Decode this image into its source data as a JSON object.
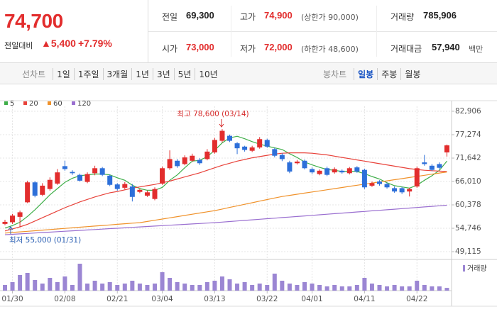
{
  "header": {
    "price": "74,700",
    "change_label": "전일대비",
    "change": "▲5,400",
    "rate": "+7.79%",
    "rows": [
      [
        {
          "label": "전일",
          "value": "69,300"
        },
        {
          "label": "고가",
          "value": "74,900",
          "note": "(상한가 90,000)"
        },
        {
          "label": "거래량",
          "value": "785,906"
        }
      ],
      [
        {
          "label": "시가",
          "value": "73,000"
        },
        {
          "label": "저가",
          "value": "72,000",
          "note": "(하한가 48,600)"
        },
        {
          "label": "거래대금",
          "value": "57,940",
          "note": "백만"
        }
      ]
    ]
  },
  "toolbar": {
    "line_label": "선차트",
    "line_items": [
      "1일",
      "1주일",
      "3개월",
      "1년",
      "3년",
      "5년",
      "10년"
    ],
    "candle_label": "봉차트",
    "candle_items": [
      "일봉",
      "주봉",
      "월봉"
    ]
  },
  "chart_data": {
    "type": "candlestick",
    "categories": [
      null,
      "01/30",
      null,
      null,
      null,
      null,
      null,
      null,
      "02/08",
      null,
      null,
      null,
      null,
      null,
      null,
      "02/21",
      null,
      null,
      null,
      null,
      null,
      "03/04",
      null,
      null,
      null,
      null,
      null,
      null,
      "03/13",
      null,
      null,
      null,
      null,
      null,
      null,
      "03/22",
      null,
      null,
      null,
      null,
      null,
      "04/01",
      null,
      null,
      null,
      null,
      null,
      null,
      "04/11",
      null,
      null,
      null,
      null,
      null,
      null,
      "04/22",
      null,
      null,
      null,
      null
    ],
    "open": [
      55800,
      56200,
      57500,
      61000,
      65800,
      62800,
      64200,
      65500,
      69700,
      68300,
      67600,
      65900,
      68000,
      69200,
      67400,
      65300,
      64500,
      64800,
      63500,
      62600,
      61800,
      65500,
      69200,
      71000,
      70200,
      71000,
      71200,
      71400,
      73000,
      75800,
      77000,
      75200,
      74400,
      73400,
      74200,
      76000,
      73800,
      72400,
      70600,
      70400,
      71000,
      69000,
      67800,
      69200,
      68200,
      68600,
      68000,
      69400,
      68800,
      65000,
      66000,
      65400,
      64400,
      64400,
      63600,
      64800,
      70600,
      69800,
      70200,
      73000
    ],
    "high": [
      56800,
      58200,
      59000,
      66200,
      66100,
      65600,
      67000,
      69000,
      71000,
      68700,
      67900,
      68200,
      69800,
      69500,
      67700,
      65600,
      65900,
      65400,
      64300,
      63800,
      64600,
      69600,
      73500,
      71400,
      72300,
      72700,
      71600,
      73800,
      76500,
      78600,
      77300,
      75500,
      74600,
      74600,
      76700,
      76300,
      74100,
      72800,
      71000,
      71200,
      71300,
      69400,
      68900,
      69600,
      69400,
      68900,
      69500,
      69700,
      69100,
      66000,
      66300,
      65700,
      64800,
      64700,
      64500,
      69600,
      72400,
      70200,
      70600,
      74900
    ],
    "low": [
      55500,
      55800,
      55000,
      60800,
      62200,
      62500,
      63800,
      65200,
      68600,
      67600,
      66000,
      65600,
      67500,
      67300,
      64900,
      63800,
      64100,
      61200,
      63200,
      62300,
      61500,
      65200,
      68800,
      69300,
      69900,
      70700,
      70000,
      71100,
      72700,
      75400,
      75500,
      72600,
      73200,
      73100,
      73900,
      74100,
      71800,
      70900,
      68000,
      70100,
      68900,
      67800,
      67500,
      67300,
      67900,
      67900,
      67700,
      68100,
      64200,
      64700,
      65000,
      64300,
      63300,
      63000,
      62400,
      64500,
      69800,
      68500,
      68900,
      72000
    ],
    "close": [
      56300,
      57800,
      58600,
      65800,
      62600,
      65000,
      66400,
      68200,
      69000,
      68000,
      66200,
      67800,
      69200,
      67600,
      65200,
      64200,
      65400,
      62300,
      64000,
      63400,
      64200,
      69200,
      71400,
      69700,
      71800,
      72200,
      70400,
      73200,
      76000,
      78200,
      75800,
      74000,
      73600,
      74200,
      76200,
      74400,
      72200,
      71400,
      68400,
      70800,
      69200,
      68200,
      68600,
      67600,
      69000,
      68200,
      69200,
      68400,
      64600,
      65600,
      65400,
      64600,
      63600,
      63400,
      64200,
      69200,
      70200,
      68800,
      69300,
      74700
    ],
    "up_color": "#e22d2d",
    "down_color": "#2d6fd9",
    "series": [
      {
        "name": "5",
        "color": "#3fae49",
        "values": [
          54800,
          55400,
          56200,
          57600,
          59200,
          61000,
          62800,
          64300,
          65800,
          66800,
          67400,
          67600,
          67800,
          67800,
          67600,
          66900,
          66300,
          65100,
          64300,
          63900,
          63900,
          64600,
          66300,
          67600,
          69300,
          70900,
          71100,
          72000,
          73500,
          75300,
          76500,
          76900,
          76300,
          75600,
          75000,
          74500,
          74100,
          73700,
          72700,
          71800,
          70700,
          70000,
          69400,
          68900,
          68700,
          68400,
          68500,
          68400,
          67900,
          67200,
          66600,
          65700,
          65000,
          64700,
          64400,
          65100,
          66300,
          67400,
          68700,
          70900
        ]
      },
      {
        "name": "20",
        "color": "#e8423a",
        "values": [
          54100,
          54600,
          55100,
          55700,
          56500,
          57300,
          58100,
          58900,
          59700,
          60400,
          61100,
          61700,
          62300,
          62800,
          63300,
          63600,
          64000,
          64400,
          64700,
          65000,
          65300,
          65700,
          66100,
          66600,
          67100,
          67600,
          68100,
          68700,
          69300,
          69900,
          70400,
          70900,
          71300,
          71700,
          72000,
          72300,
          72600,
          72800,
          72900,
          72900,
          72900,
          72800,
          72600,
          72400,
          72100,
          71800,
          71500,
          71200,
          70900,
          70600,
          70300,
          70000,
          69700,
          69400,
          69100,
          68900,
          68700,
          68600,
          68500,
          68400
        ]
      },
      {
        "name": "60",
        "color": "#f0922b",
        "values": [
          53600,
          53740,
          53880,
          54020,
          54160,
          54300,
          54440,
          54580,
          54720,
          54860,
          55000,
          55140,
          55280,
          55420,
          55560,
          55700,
          55840,
          55980,
          56100,
          56390,
          56680,
          56970,
          57260,
          57550,
          57840,
          58130,
          58420,
          58710,
          59000,
          59380,
          59760,
          60140,
          60520,
          60900,
          61280,
          61660,
          62040,
          62400,
          62670,
          62940,
          63210,
          63480,
          63750,
          64020,
          64290,
          64560,
          64830,
          65100,
          65370,
          65640,
          65900,
          66170,
          66440,
          66700,
          66970,
          67240,
          67500,
          67770,
          68040,
          68300
        ]
      },
      {
        "name": "120",
        "color": "#9a6fd0",
        "values": [
          53200,
          53300,
          53410,
          53510,
          53610,
          53720,
          53820,
          53930,
          54030,
          54140,
          54240,
          54340,
          54450,
          54550,
          54660,
          54760,
          54860,
          54970,
          55070,
          55180,
          55280,
          55380,
          55490,
          55590,
          55690,
          55800,
          55900,
          56000,
          56100,
          56240,
          56370,
          56510,
          56640,
          56780,
          56910,
          57050,
          57180,
          57320,
          57450,
          57590,
          57720,
          57860,
          57990,
          58130,
          58260,
          58400,
          58530,
          58670,
          58800,
          58940,
          59070,
          59210,
          59340,
          59480,
          59610,
          59750,
          59880,
          60020,
          60160,
          60300
        ]
      }
    ],
    "volume": {
      "name": "거래량",
      "color": "#9b86d3",
      "ylim": [
        0,
        8000000
      ],
      "values": [
        1600000,
        2400000,
        4400000,
        5000000,
        3000000,
        2000000,
        3600000,
        2400000,
        4000000,
        1600000,
        7600000,
        2000000,
        2800000,
        2000000,
        2400000,
        1600000,
        2000000,
        2800000,
        2000000,
        1600000,
        2000000,
        5200000,
        3600000,
        2400000,
        2000000,
        1600000,
        1600000,
        2400000,
        2800000,
        4000000,
        3200000,
        2000000,
        2400000,
        1600000,
        2000000,
        1600000,
        4800000,
        2800000,
        2000000,
        1600000,
        2400000,
        2000000,
        1600000,
        1200000,
        1600000,
        1200000,
        1200000,
        1600000,
        3600000,
        2000000,
        1600000,
        1200000,
        1600000,
        1200000,
        1200000,
        2800000,
        1600000,
        1200000,
        1200000,
        785906
      ]
    },
    "ylim": [
      47928,
      84093
    ],
    "yticks": [
      {
        "value": 82906,
        "label": "82,906"
      },
      {
        "value": 77274,
        "label": "77,274"
      },
      {
        "value": 71642,
        "label": "71,642"
      },
      {
        "value": 66010,
        "label": "66,010"
      },
      {
        "value": 60378,
        "label": "60,378"
      },
      {
        "value": 54746,
        "label": "54,746"
      },
      {
        "value": 49115,
        "label": "49,115"
      }
    ],
    "grid": true,
    "annotations": [
      "최고 78,600 (03/14)",
      "최저 55,000 (01/31)"
    ]
  }
}
